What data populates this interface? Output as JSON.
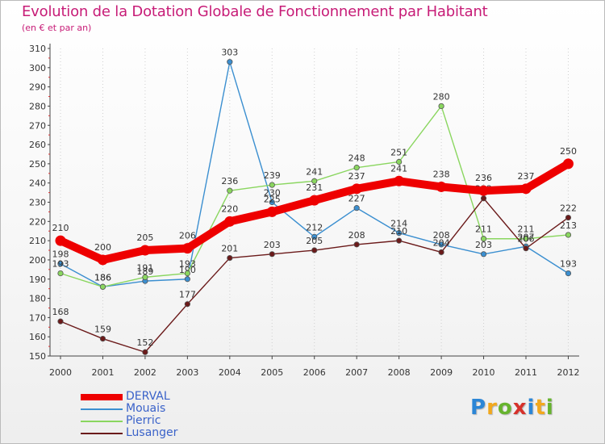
{
  "title": "Evolution de la Dotation Globale de Fonctionnement par Habitant",
  "subtitle": "(en € et par an)",
  "logo": {
    "letters": [
      "P",
      "r",
      "o",
      "x",
      "i",
      "t",
      "i"
    ],
    "colors": [
      "#2c86d6",
      "#f2a81d",
      "#66b32e",
      "#d6312b",
      "#2c86d6",
      "#f2a81d",
      "#66b32e"
    ]
  },
  "chart_data": {
    "type": "line",
    "x": [
      "2000",
      "2001",
      "2002",
      "2003",
      "2004",
      "2005",
      "2006",
      "2007",
      "2008",
      "2009",
      "2010",
      "2011",
      "2012"
    ],
    "ylim": [
      150,
      310
    ],
    "yticks": [
      150,
      160,
      170,
      180,
      190,
      200,
      210,
      220,
      230,
      240,
      250,
      260,
      270,
      280,
      290,
      300,
      310
    ],
    "grid": "vertical-dotted",
    "legend_position": "bottom-left",
    "series": [
      {
        "name": "Mouais",
        "color": "#3b8fd0",
        "values": [
          198,
          186,
          189,
          190,
          303,
          230,
          212,
          227,
          214,
          208,
          203,
          207,
          193
        ]
      },
      {
        "name": "Pierric",
        "color": "#8ad65f",
        "values": [
          193,
          186,
          191,
          193,
          236,
          239,
          241,
          248,
          251,
          280,
          211,
          211,
          213
        ]
      },
      {
        "name": "Lusanger",
        "color": "#6b1a1a",
        "values": [
          168,
          159,
          152,
          177,
          201,
          203,
          205,
          208,
          210,
          204,
          232,
          206,
          222
        ]
      },
      {
        "name": "DERVAL",
        "color": "#ee0000",
        "values": [
          210,
          200,
          205,
          206,
          220,
          225,
          231,
          237,
          241,
          238,
          236,
          237,
          250
        ]
      }
    ],
    "legend_order": [
      "DERVAL",
      "Mouais",
      "Pierric",
      "Lusanger"
    ]
  }
}
